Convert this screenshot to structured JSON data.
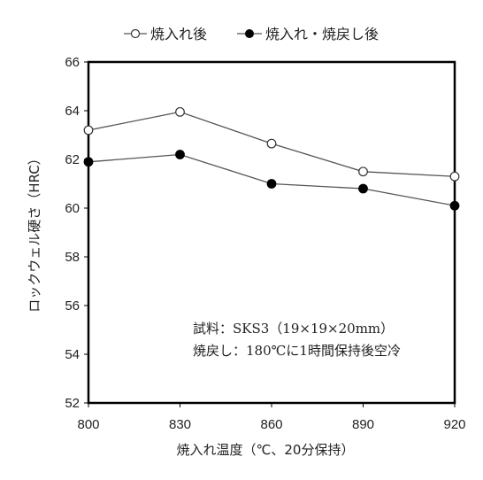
{
  "chart_data": {
    "type": "line",
    "x": [
      800,
      830,
      860,
      890,
      920
    ],
    "xlabel": "焼入れ温度（℃、20分保持）",
    "ylabel": "ロックウェル硬さ（HRC）",
    "xlim": [
      800,
      920
    ],
    "ylim": [
      52,
      66
    ],
    "yticks": [
      52,
      54,
      56,
      58,
      60,
      62,
      64,
      66
    ],
    "grid": false,
    "legend_position": "top",
    "series": [
      {
        "name": "焼入れ後",
        "marker": "open-circle",
        "values": [
          63.2,
          63.95,
          62.65,
          61.5,
          61.3
        ]
      },
      {
        "name": "焼入れ・焼戻し後",
        "marker": "filled-circle",
        "values": [
          61.9,
          62.2,
          61.0,
          60.8,
          60.1
        ]
      }
    ],
    "annotations": [
      "試料：SKS3（19×19×20mm）",
      "焼戻し：180℃に1時間保持後空冷"
    ],
    "colors": {
      "line": "#555555",
      "marker_fill": "#000000",
      "frame": "#000000"
    }
  }
}
